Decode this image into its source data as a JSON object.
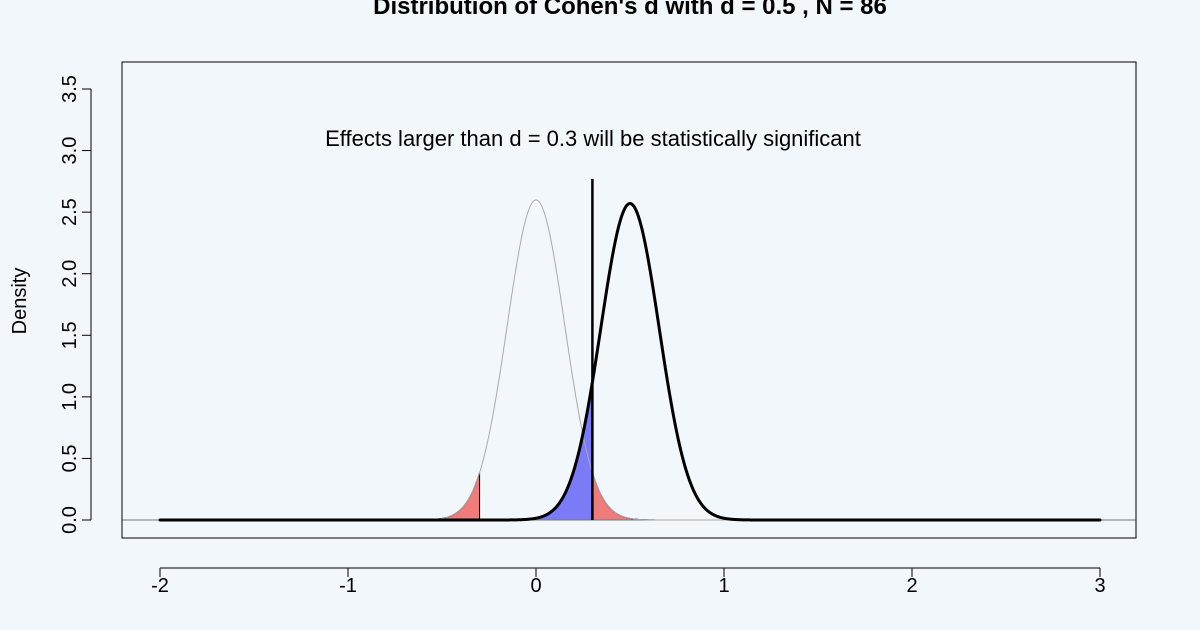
{
  "chart_data": {
    "type": "area",
    "title": "Distribution of Cohen's d with d =  0.5 , N =  86",
    "xlabel": "",
    "ylabel": "Density",
    "xlim": [
      -2,
      3
    ],
    "ylim": [
      0,
      3.5
    ],
    "x_ticks": [
      -2,
      -1,
      0,
      1,
      2,
      3
    ],
    "y_ticks": [
      0.0,
      0.5,
      1.0,
      1.5,
      2.0,
      2.5,
      3.0,
      3.5
    ],
    "x_tick_labels": [
      "-2",
      "-1",
      "0",
      "1",
      "2",
      "3"
    ],
    "y_tick_labels": [
      "0.0",
      "0.5",
      "1.0",
      "1.5",
      "2.0",
      "2.5",
      "3.0",
      "3.5"
    ],
    "grid": false,
    "series": [
      {
        "mean": 0.0,
        "peak_density": 2.6,
        "color": "#aaaaaa",
        "linewidth": 1
      },
      {
        "mean": 0.5,
        "peak_density": 2.57,
        "color": "#000000",
        "linewidth": 3
      }
    ],
    "critical_value": 0.3,
    "critical_line_top": 2.77,
    "shaded_regions": [
      {
        "distribution": 0,
        "from": -2,
        "to": -0.3,
        "color": "#f07b7b"
      },
      {
        "distribution": 0,
        "from": 0.3,
        "to": 3,
        "color": "#f07b7b"
      },
      {
        "distribution": 1,
        "from": -2,
        "to": 0.3,
        "color": "#7b7bf7"
      }
    ],
    "baseline_y": 0,
    "annotation": "Effects larger than d =  0.3 will be statistically significant"
  }
}
